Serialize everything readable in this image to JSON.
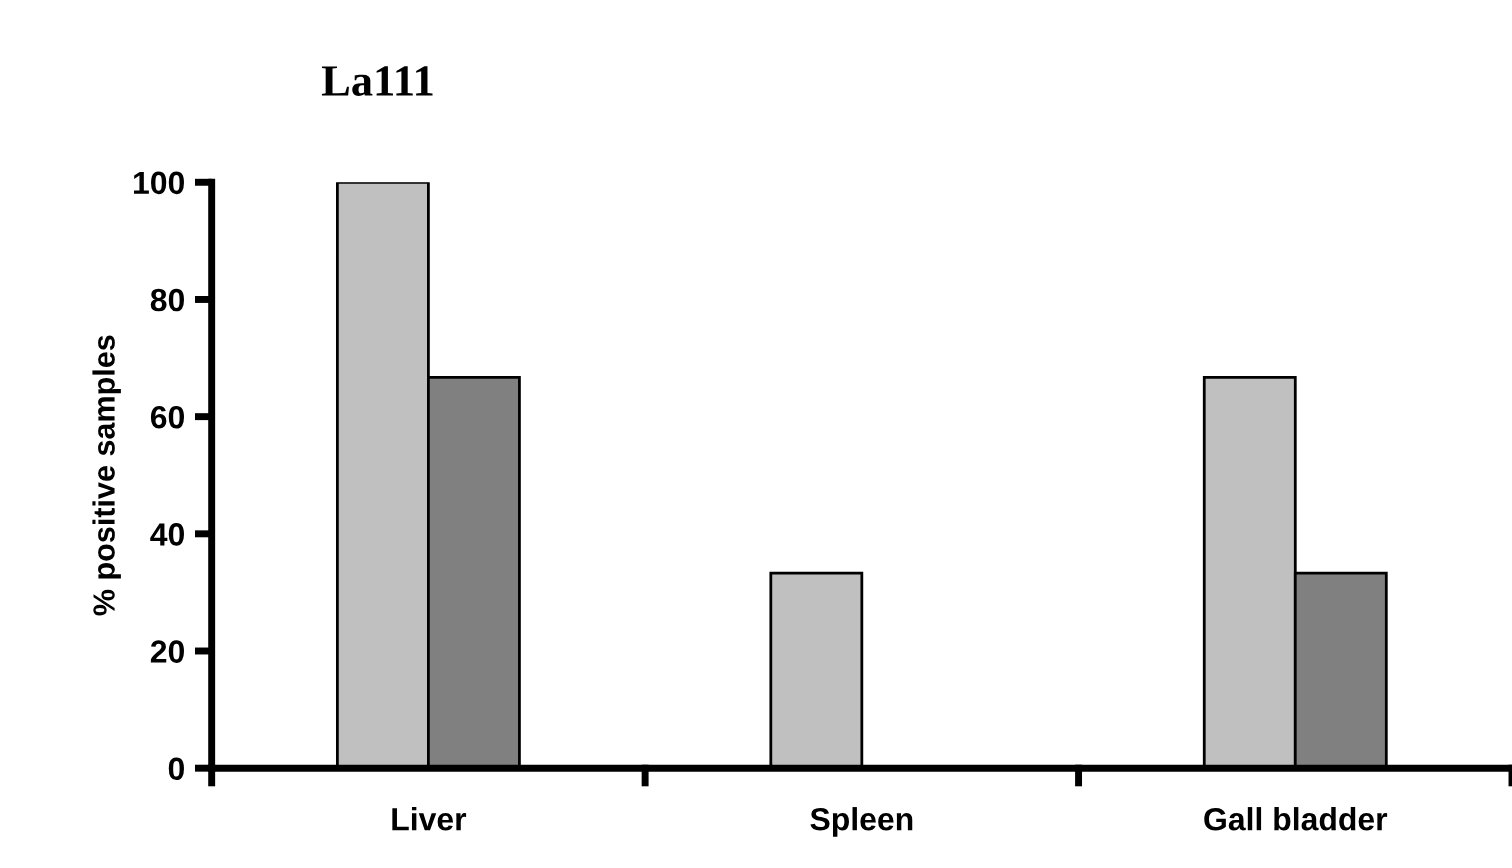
{
  "chart_data": {
    "type": "bar",
    "title": "La111",
    "ylabel": "% positive samples",
    "categories": [
      "Liver",
      "Spleen",
      "Gall bladder"
    ],
    "series": [
      {
        "color": "#c0c0c0",
        "values": [
          100,
          33.3,
          66.7
        ]
      },
      {
        "color": "#808080",
        "values": [
          66.7,
          null,
          33.3
        ]
      }
    ],
    "ylim": [
      0,
      100
    ],
    "yticks": [
      0,
      20,
      40,
      60,
      80,
      100
    ],
    "grid": false,
    "legend": false
  }
}
